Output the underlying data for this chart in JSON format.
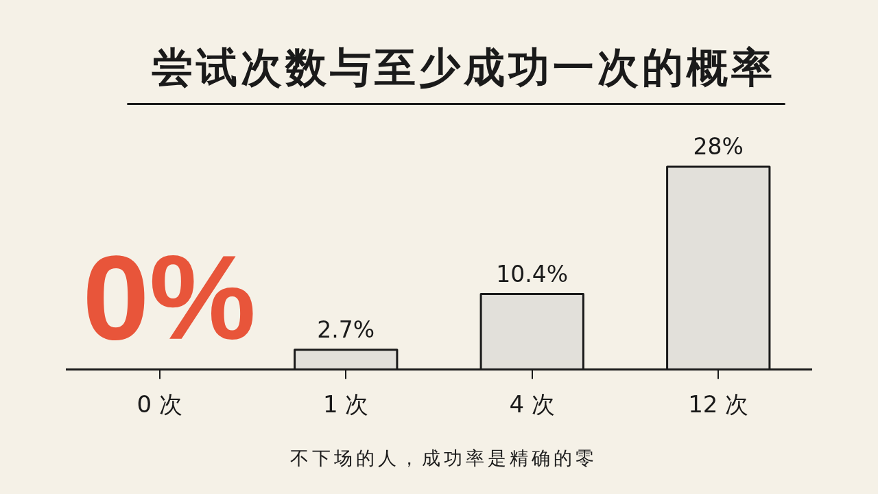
{
  "chart_data": {
    "type": "bar",
    "title": "尝试次数与至少成功一次的概率",
    "categories": [
      "0 次",
      "1 次",
      "4 次",
      "12 次"
    ],
    "values": [
      0,
      2.7,
      10.4,
      28
    ],
    "colors": [
      "#e8553a",
      "#e2e0da",
      "#e2e0da",
      "#e2e0da"
    ],
    "value_labels": [
      "0%",
      "2.7%",
      "10.4%",
      "28%"
    ],
    "tick_labels": "x",
    "annotations": [
      "不下场的人，成功率是精确的零"
    ]
  }
}
